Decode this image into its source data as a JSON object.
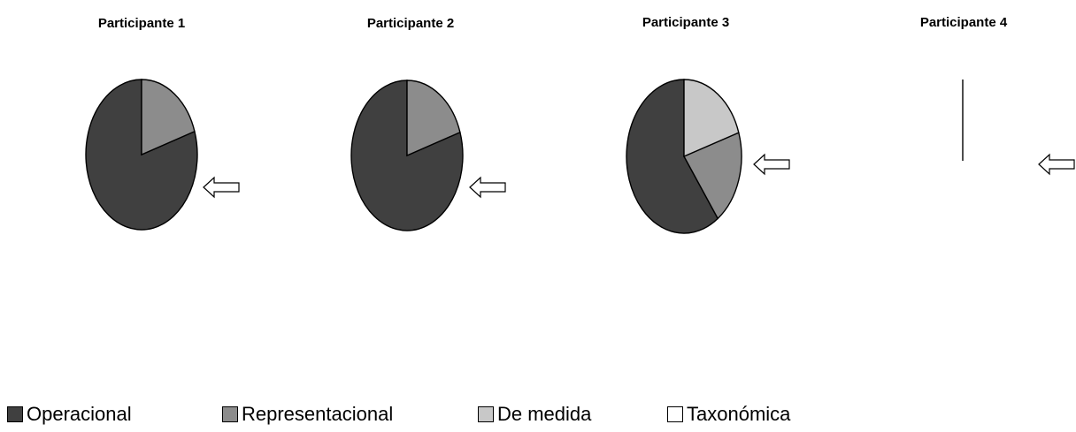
{
  "chart_data": [
    {
      "type": "pie",
      "title": "Participante 1",
      "slices": [
        {
          "category": "Operacional",
          "value": 80
        },
        {
          "category": "Representacional",
          "value": 20
        },
        {
          "category": "De medida",
          "value": 0
        },
        {
          "category": "Taxonómica",
          "value": 0
        }
      ]
    },
    {
      "type": "pie",
      "title": "Participante 2",
      "slices": [
        {
          "category": "Operacional",
          "value": 80
        },
        {
          "category": "Representacional",
          "value": 20
        },
        {
          "category": "De medida",
          "value": 0
        },
        {
          "category": "Taxonómica",
          "value": 0
        }
      ]
    },
    {
      "type": "pie",
      "title": "Participante 3",
      "slices": [
        {
          "category": "Operacional",
          "value": 60
        },
        {
          "category": "Representacional",
          "value": 20
        },
        {
          "category": "De medida",
          "value": 20
        },
        {
          "category": "Taxonómica",
          "value": 0
        }
      ]
    },
    {
      "type": "pie",
      "title": "Participante 4",
      "slices": [
        {
          "category": "Operacional",
          "value": 0
        },
        {
          "category": "Representacional",
          "value": 0
        },
        {
          "category": "De medida",
          "value": 0
        },
        {
          "category": "Taxonómica",
          "value": 0
        }
      ]
    }
  ],
  "legend": {
    "items": [
      {
        "label": "Operacional",
        "color": "#404040"
      },
      {
        "label": "Representacional",
        "color": "#8c8c8c"
      },
      {
        "label": "De medida",
        "color": "#c8c8c8"
      },
      {
        "label": "Taxonómica",
        "color": "#ffffff"
      }
    ]
  },
  "colors": {
    "Operacional": "#404040",
    "Representacional": "#8c8c8c",
    "De medida": "#c8c8c8",
    "Taxonómica": "#ffffff"
  },
  "arrow_icon": "left-arrow-icon"
}
